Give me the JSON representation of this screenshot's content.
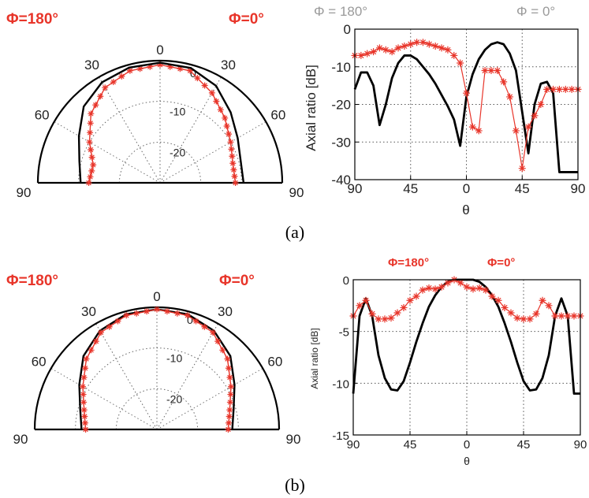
{
  "captions": [
    "(a)",
    "(b)"
  ],
  "chart_data": [
    {
      "id": "a-polar",
      "type": "line",
      "phi_left_label": "Φ=180°",
      "phi_right_label": "Φ=0°",
      "angle_labels_left": [
        "90",
        "60",
        "30"
      ],
      "angle_center_label": "0",
      "angle_labels_right": [
        "30",
        "60",
        "90"
      ],
      "radial_labels": [
        "0",
        "-10",
        "-20"
      ],
      "rlim": [
        -30,
        0
      ],
      "grid": true,
      "theta": [
        -90,
        -75,
        -60,
        -45,
        -30,
        -15,
        0,
        15,
        30,
        45,
        60,
        75,
        90
      ],
      "series": [
        {
          "color": "#e8352a",
          "marker": "asterisk",
          "values": [
            -12.5,
            -13,
            -10,
            -6,
            -3,
            -1.5,
            -1,
            -1.5,
            -4.5,
            -7.5,
            -10,
            -11.5,
            -11.5
          ]
        },
        {
          "color": "#000000",
          "marker": "none",
          "values": [
            -10.5,
            -9.5,
            -7,
            -3.5,
            -1.5,
            -0.7,
            -0.5,
            -0.8,
            -2.5,
            -5.5,
            -8,
            -9.5,
            -9.5
          ]
        }
      ]
    },
    {
      "id": "a-cart",
      "type": "line",
      "phi_left_label": "Φ = 180°",
      "phi_right_label": "Φ = 0°",
      "xlabel": "θ",
      "ylabel": "Axial ratio [dB]",
      "xtick_labels": [
        "90",
        "45",
        "0",
        "45",
        "90"
      ],
      "yticks": [
        0,
        -10,
        -20,
        -30,
        -40
      ],
      "ylim": [
        -40,
        0
      ],
      "x": [
        -90,
        -85,
        -80,
        -75,
        -70,
        -65,
        -60,
        -55,
        -50,
        -45,
        -40,
        -35,
        -30,
        -25,
        -20,
        -15,
        -10,
        -5,
        0,
        5,
        10,
        15,
        20,
        25,
        30,
        35,
        40,
        45,
        50,
        55,
        60,
        65,
        70,
        75,
        80,
        85,
        90
      ],
      "series": [
        {
          "color": "#000000",
          "marker": "none",
          "values": [
            -16,
            -11.5,
            -11.5,
            -15,
            -25.5,
            -20,
            -13,
            -9,
            -7,
            -7,
            -8,
            -10,
            -12,
            -14.5,
            -17.5,
            -20.5,
            -24,
            -31,
            -18,
            -12,
            -8,
            -5.5,
            -4,
            -3.5,
            -4,
            -6.5,
            -11,
            -22,
            -33,
            -20,
            -14.5,
            -14,
            -17,
            -38,
            -38,
            -38,
            -38
          ]
        },
        {
          "color": "#e8352a",
          "marker": "asterisk",
          "values": [
            -7,
            -7,
            -6.5,
            -6,
            -5,
            -5.5,
            -6,
            -5,
            -4.5,
            -4,
            -3.5,
            -3.5,
            -4,
            -4.5,
            -5,
            -5.5,
            -7,
            -9,
            -17,
            -26,
            -27,
            -11,
            -11,
            -11,
            -14,
            -18,
            -27,
            -37,
            -26,
            -23,
            -20,
            -16,
            -16,
            -16,
            -16,
            -16,
            -16
          ]
        }
      ]
    },
    {
      "id": "b-polar",
      "type": "line",
      "phi_left_label": "Φ=180°",
      "phi_right_label": "Φ=0°",
      "angle_labels_left": [
        "90",
        "60",
        "30"
      ],
      "angle_center_label": "0",
      "angle_labels_right": [
        "30",
        "60",
        "90"
      ],
      "radial_labels": [
        "0",
        "-10",
        "-20"
      ],
      "rlim": [
        -30,
        0
      ],
      "grid": true,
      "theta": [
        -90,
        -75,
        -60,
        -45,
        -30,
        -15,
        0,
        15,
        30,
        45,
        60,
        75,
        90
      ],
      "series": [
        {
          "color": "#000000",
          "marker": "none",
          "values": [
            -11.5,
            -10.5,
            -8,
            -4.5,
            -2,
            -0.7,
            -0.5,
            -0.7,
            -2,
            -4.5,
            -8,
            -10.5,
            -11.5
          ]
        },
        {
          "color": "#e8352a",
          "marker": "asterisk",
          "values": [
            -12.5,
            -11.5,
            -9,
            -5.5,
            -2.5,
            -1,
            -0.5,
            -1,
            -2.5,
            -5.5,
            -9,
            -11.5,
            -12.5
          ]
        }
      ]
    },
    {
      "id": "b-cart",
      "type": "line",
      "phi_left_label": "Φ=180°",
      "phi_right_label": "Φ=0°",
      "xlabel": "θ",
      "ylabel": "Axial ratio [dB]",
      "xtick_labels": [
        "90",
        "45",
        "0",
        "45",
        "90"
      ],
      "yticks": [
        0,
        -5,
        -10,
        -15
      ],
      "ylim": [
        -15,
        0
      ],
      "x": [
        -90,
        -85,
        -80,
        -75,
        -70,
        -65,
        -60,
        -55,
        -50,
        -45,
        -40,
        -35,
        -30,
        -25,
        -20,
        -15,
        -10,
        -5,
        0,
        5,
        10,
        15,
        20,
        25,
        30,
        35,
        40,
        45,
        50,
        55,
        60,
        65,
        70,
        75,
        80,
        85,
        90
      ],
      "series": [
        {
          "color": "#000000",
          "marker": "none",
          "values": [
            -11,
            -3.5,
            -1.8,
            -3.5,
            -7.3,
            -9.5,
            -10.6,
            -10.7,
            -9.8,
            -8,
            -6,
            -4.2,
            -2.6,
            -1.5,
            -0.7,
            -0.2,
            0,
            0,
            0,
            0,
            -0.2,
            -0.7,
            -1.5,
            -2.6,
            -4.2,
            -6,
            -8,
            -9.8,
            -10.7,
            -10.6,
            -9.5,
            -7.3,
            -3.5,
            -1.8,
            -3.5,
            -11,
            -11
          ]
        },
        {
          "color": "#e8352a",
          "marker": "asterisk",
          "values": [
            -3.5,
            -2.5,
            -2,
            -3.3,
            -3.8,
            -3.8,
            -3.7,
            -3.2,
            -2.7,
            -2,
            -1.6,
            -1,
            -0.8,
            -0.9,
            -0.7,
            -0.3,
            0,
            -0.3,
            -0.7,
            -0.9,
            -0.8,
            -1,
            -1.6,
            -2,
            -2.7,
            -3.2,
            -3.7,
            -3.8,
            -3.8,
            -3.3,
            -2,
            -2.5,
            -3.5,
            -3.5,
            -3.5,
            -3.5,
            -3.5
          ]
        }
      ]
    }
  ]
}
